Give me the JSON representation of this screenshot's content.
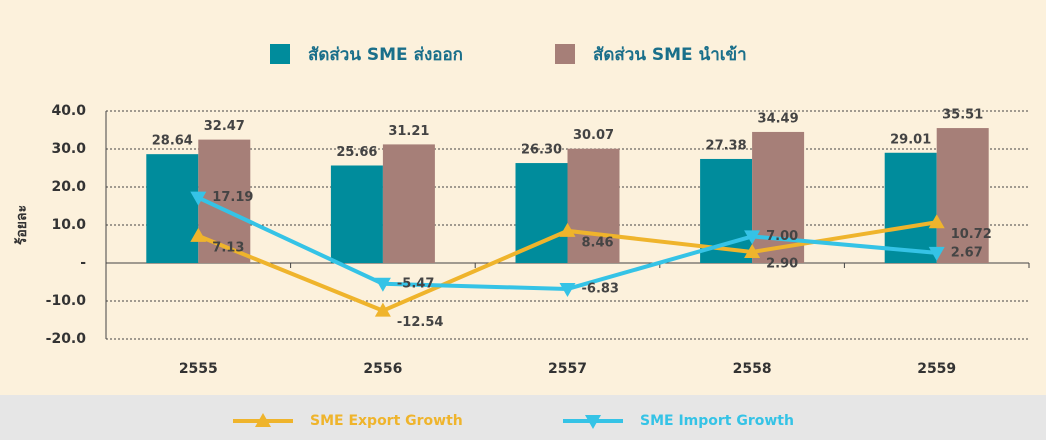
{
  "chart_data": {
    "type": "bar",
    "y_label": "ร้อยละ",
    "categories": [
      "2555",
      "2556",
      "2557",
      "2558",
      "2559"
    ],
    "series": [
      {
        "name": "สัดส่วน SME ส่งออก",
        "type": "bar",
        "color": "#008c9c",
        "values": [
          28.64,
          25.66,
          26.3,
          27.38,
          29.01
        ],
        "value_labels": [
          "28.64",
          "25.66",
          "26.30",
          "27.38",
          "29.01"
        ]
      },
      {
        "name": "สัดส่วน SME นำเข้า",
        "type": "bar",
        "color": "#a67f78",
        "values": [
          32.47,
          31.21,
          30.07,
          34.49,
          35.51
        ],
        "value_labels": [
          "32.47",
          "31.21",
          "30.07",
          "34.49",
          "35.51"
        ]
      },
      {
        "name": "SME Export Growth",
        "type": "line",
        "marker": "triangle-up",
        "color": "#efb42c",
        "values": [
          7.13,
          -12.54,
          8.46,
          2.9,
          10.72
        ],
        "value_labels": [
          "7.13",
          "-12.54",
          "8.46",
          "2.90",
          "10.72"
        ]
      },
      {
        "name": "SME Import Growth",
        "type": "line",
        "marker": "triangle-down",
        "color": "#35c3e6",
        "values": [
          17.19,
          -5.47,
          -6.83,
          7.0,
          2.67
        ],
        "value_labels": [
          "17.19",
          "-5.47",
          "-6.83",
          "7.00",
          "2.67"
        ]
      }
    ],
    "ylim": [
      -20,
      40
    ],
    "yticks": [
      {
        "value": -20,
        "label": "-20.0"
      },
      {
        "value": -10,
        "label": "-10.0"
      },
      {
        "value": 0,
        "label": "-"
      },
      {
        "value": 10,
        "label": "10.0"
      },
      {
        "value": 20,
        "label": "20.0"
      },
      {
        "value": 30,
        "label": "30.0"
      },
      {
        "value": 40,
        "label": "40.0"
      }
    ],
    "grid": true
  }
}
